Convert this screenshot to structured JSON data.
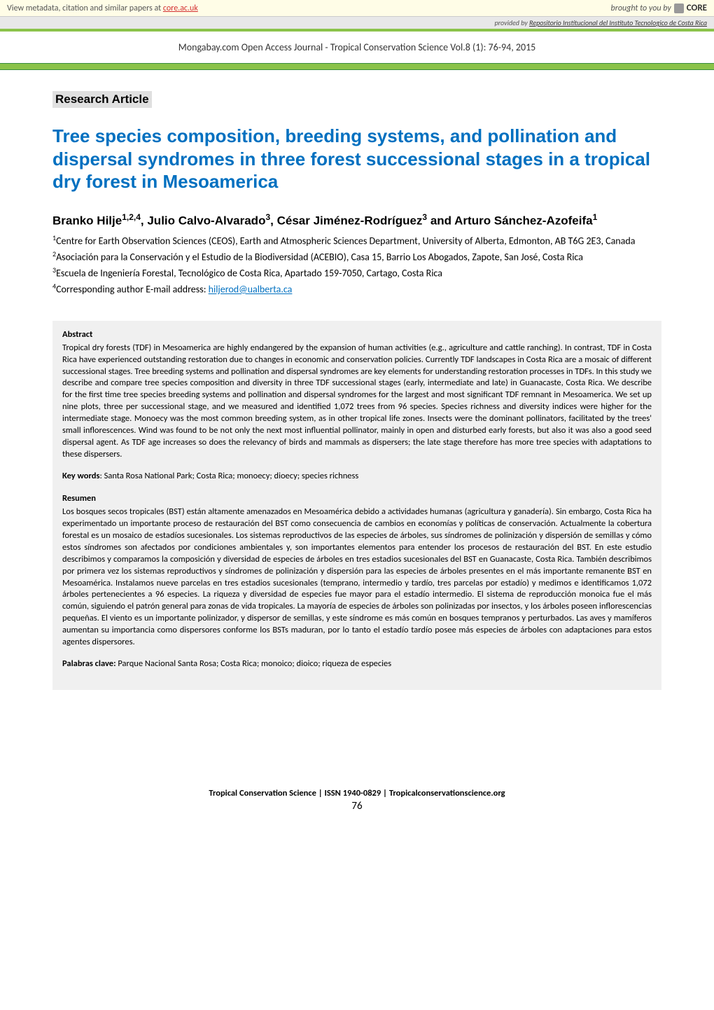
{
  "metadata_bar": {
    "left_text": "View metadata, citation and similar papers at ",
    "left_link": "core.ac.uk",
    "brought_by": "brought to you by ",
    "core": "CORE"
  },
  "provided_bar": {
    "prefix": "provided by ",
    "source": "Repositorio Institucional del Instituto Tecnologico de Costa Rica"
  },
  "journal_header": "Mongabay.com Open Access Journal - Tropical Conservation Science Vol.8 (1): 76-94, 2015",
  "research_label": "Research Article",
  "title": "Tree species composition, breeding systems, and pollination and dispersal syndromes in three forest successional stages in a tropical dry forest in Mesoamerica",
  "authors_html": "Branko Hilje<sup>1,2,4</sup>, Julio Calvo-Alvarado<sup>3</sup>, César Jiménez-Rodríguez<sup>3</sup> and Arturo Sánchez-Azofeifa<sup>1</sup>",
  "affiliations": {
    "a1": "Centre for Earth Observation Sciences (CEOS), Earth and Atmospheric Sciences Department, University of Alberta, Edmonton, AB T6G 2E3, Canada",
    "a2": "Asociación para la Conservación y el Estudio de la Biodiversidad (ACEBIO), Casa 15, Barrio Los Abogados, Zapote, San José, Costa Rica",
    "a3": "Escuela de Ingeniería Forestal, Tecnológico de Costa Rica, Apartado 159-7050, Cartago, Costa Rica",
    "a4_prefix": "Corresponding author E-mail address: ",
    "a4_email": "hiljerod@ualberta.ca"
  },
  "abstract": {
    "heading": "Abstract",
    "text": "Tropical dry forests (TDF) in Mesoamerica are highly endangered by the expansion of human activities (e.g., agriculture and cattle ranching). In contrast, TDF in Costa Rica have experienced outstanding restoration due to changes in economic and conservation policies. Currently TDF landscapes in Costa Rica are a mosaic of different successional stages. Tree breeding systems and pollination and dispersal syndromes are key elements for understanding restoration processes in TDFs. In this study we describe and compare tree species composition and diversity in three TDF successional stages (early, intermediate and late) in Guanacaste, Costa Rica. We describe for the first time tree species breeding systems and pollination and dispersal syndromes for the largest and most significant TDF remnant in Mesoamerica. We set up nine plots, three per successional stage, and we measured and identified 1,072 trees from 96 species. Species richness and diversity indices were higher for the intermediate stage. Monoecy was the most common breeding system, as in other tropical life zones. Insects were the dominant pollinators, facilitated by the trees' small inflorescences. Wind was found to be not only the next most influential pollinator, mainly in open and disturbed early forests, but also it was also a good seed dispersal agent. As TDF age increases so does the relevancy of birds and mammals as dispersers; the late stage therefore has more tree species with adaptations to these dispersers.",
    "keywords_label": "Key words",
    "keywords": ": Santa Rosa National Park; Costa Rica; monoecy; dioecy; species richness"
  },
  "resumen": {
    "heading": "Resumen",
    "text": "Los bosques secos tropicales (BST) están altamente amenazados en Mesoamérica debido a actividades humanas (agricultura y ganadería). Sin embargo, Costa Rica ha experimentado un importante proceso de restauración del BST como consecuencia de cambios en economías y políticas de conservación. Actualmente la cobertura forestal es un mosaico de estadíos sucesionales. Los sistemas reproductivos de las especies de árboles, sus síndromes de polinización y dispersión de semillas y cómo estos síndromes son afectados por condiciones ambientales y, son importantes elementos para entender los procesos de restauración del BST. En este estudio describimos y comparamos la composición y diversidad de especies de árboles en tres estadios sucesionales del BST en Guanacaste, Costa Rica. También describimos por primera vez los sistemas reproductivos y síndromes de polinización y dispersión para las especies de árboles presentes en el más importante remanente BST en Mesoamérica. Instalamos nueve parcelas en tres estadios sucesionales (temprano, intermedio y tardío, tres parcelas por estadío) y medimos e identificamos 1,072 árboles pertenecientes a 96 especies. La riqueza y diversidad de especies fue mayor para el estadío intermedio. El sistema de reproducción monoica fue el más común, siguiendo el patrón general para zonas de vida tropicales. La mayoría de especies de árboles son polinizadas por insectos, y los árboles poseen inflorescencias pequeñas. El viento es un importante polinizador, y dispersor de semillas, y este síndrome es más común en bosques tempranos y perturbados. Las aves y mamíferos aumentan su importancia como dispersores conforme los BSTs maduran, por lo tanto el estadío tardío posee más especies de árboles con adaptaciones para estos agentes dispersores.",
    "keywords_label": "Palabras clave:",
    "keywords": " Parque Nacional Santa Rosa; Costa Rica; monoico; dioico; riqueza de especies"
  },
  "footer": {
    "line1": "Tropical Conservation Science | ISSN 1940-0829 | Tropicalconservationscience.org",
    "page": "76"
  },
  "colors": {
    "title_color": "#0070c0",
    "green_bar": "#8bc34a",
    "green_border": "#388e3c",
    "metadata_bg": "#fffde7",
    "abstract_bg": "#f0f0f0",
    "link_red": "#d32f2f"
  }
}
